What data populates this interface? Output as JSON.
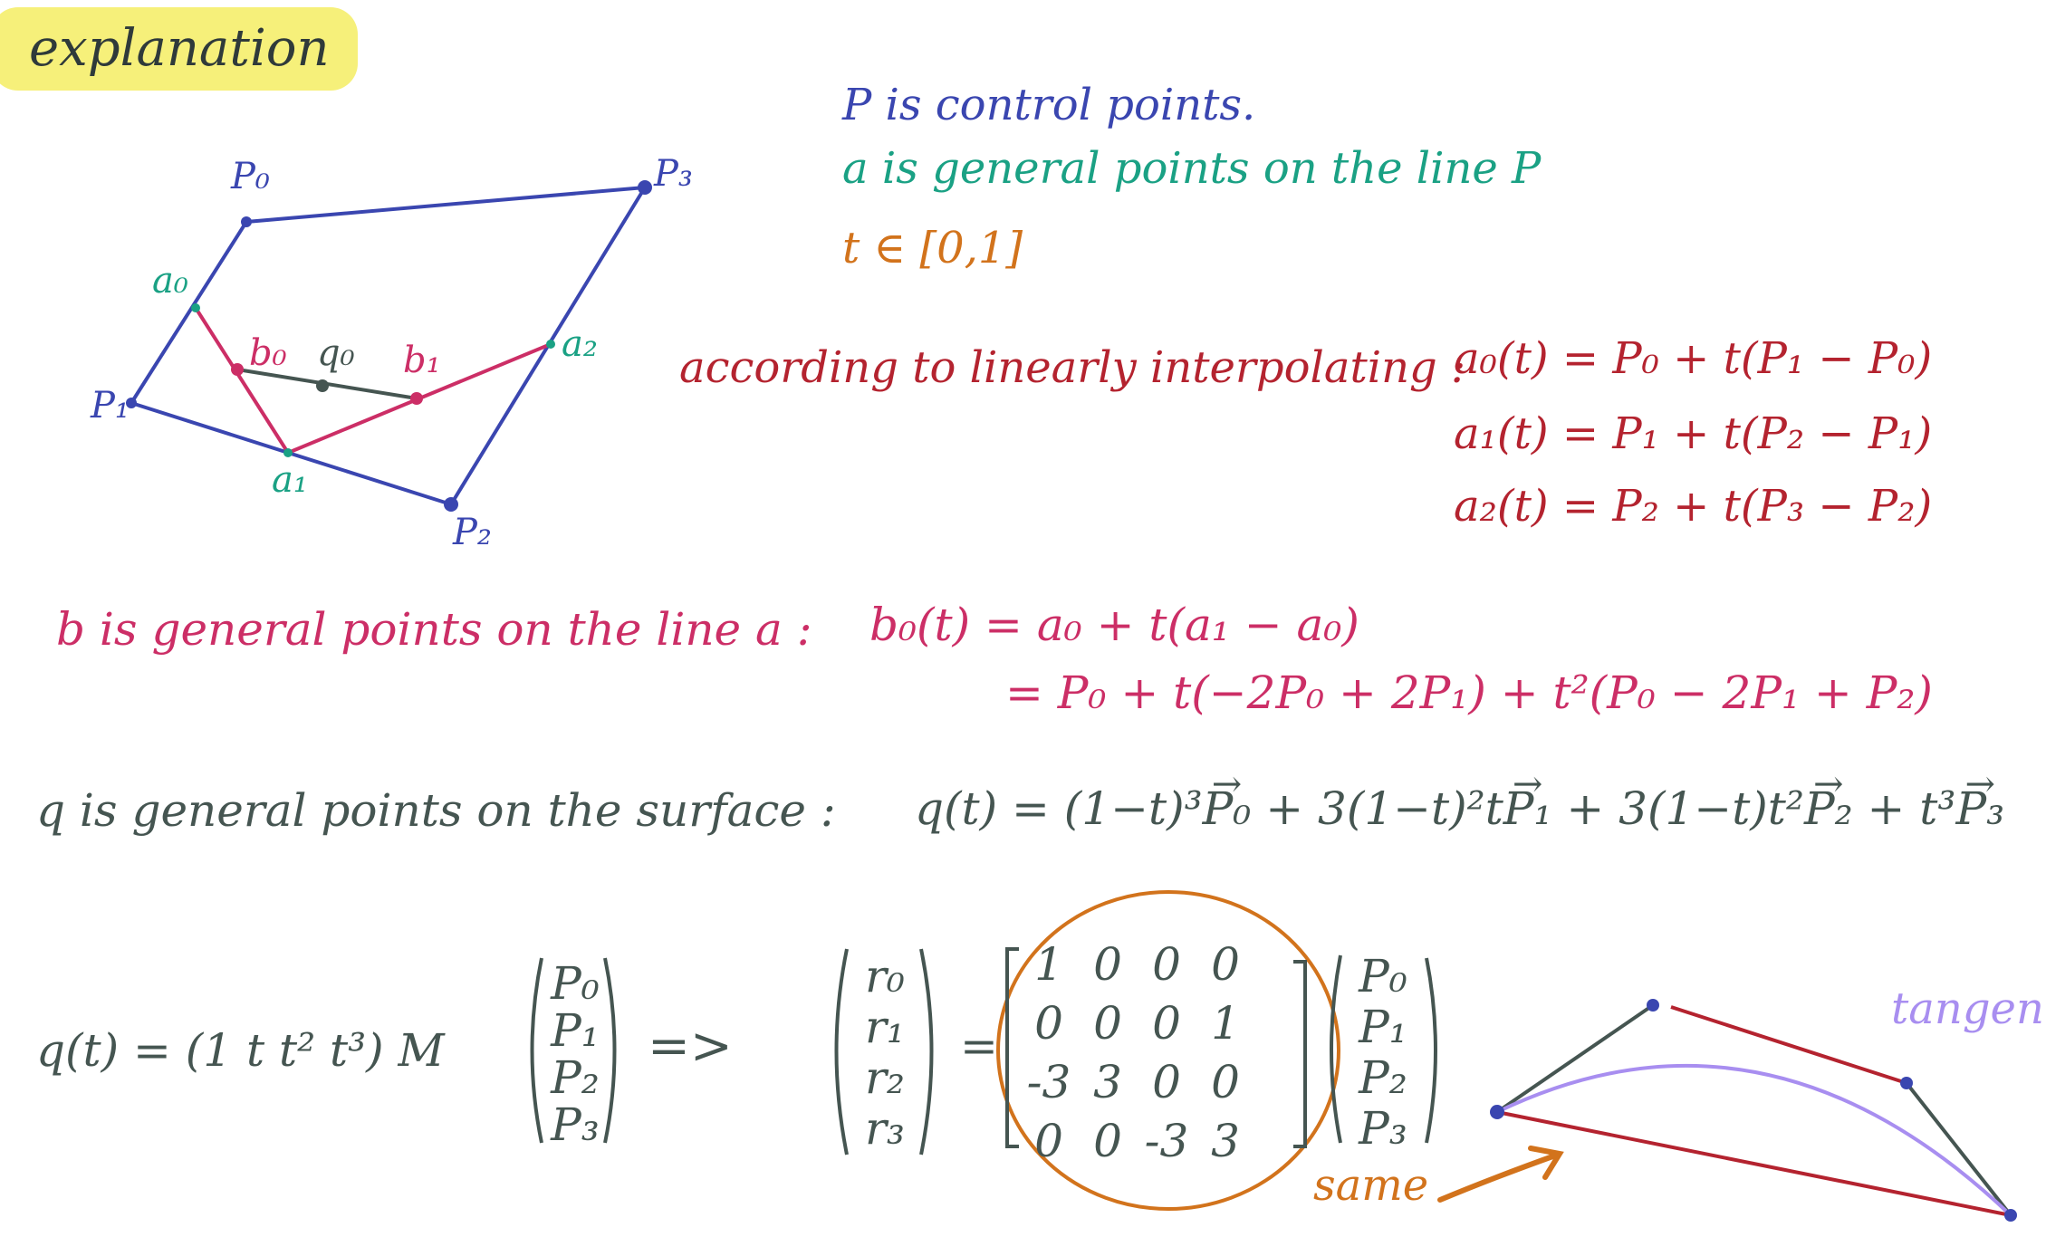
{
  "title": "explanation",
  "colors": {
    "blue": "#3a46b0",
    "teal": "#1aa184",
    "orange": "#d2731c",
    "red": "#b4232f",
    "pink": "#cc2e66",
    "gray": "#455551",
    "lavender": "#a88ef0",
    "highlight": "#f6f07a"
  },
  "diagram": {
    "labels": {
      "p0": "P₀",
      "p1": "P₁",
      "p2": "P₂",
      "p3": "P₃",
      "a0": "a₀",
      "a1": "a₁",
      "a2": "a₂",
      "b0": "b₀",
      "b1": "b₁",
      "q0": "q₀"
    }
  },
  "notes": {
    "p_def": "P is control points.",
    "a_def": "a is general points on the line P",
    "t_def": "t ∈ [0,1]",
    "interp_label": "according to linearly interpolating :",
    "eq_a0": "a₀(t) = P₀ + t(P₁ − P₀)",
    "eq_a1": "a₁(t) = P₁ + t(P₂ − P₁)",
    "eq_a2": "a₂(t) = P₂ + t(P₃ − P₂)",
    "b_def": "b is general points on the line a :",
    "eq_b0_1": "b₀(t) = a₀ + t(a₁ − a₀)",
    "eq_b0_2": "= P₀ + t(−2P₀ + 2P₁) + t²(P₀ − 2P₁ + P₂)",
    "q_def": "q is general points on the surface :",
    "eq_q": {
      "lhs": "q(t) = (1−t)³",
      "p0": "P₀",
      "t2": " + 3(1−t)²t",
      "p1": "P₁",
      "t3": " + 3(1−t)t²",
      "p2": "P₂",
      "t4": " + t³",
      "p3": "P₃"
    }
  },
  "matrix_eq": {
    "lhs": "q(t) = (1  t  t²  t³) M",
    "arrow": "=>",
    "equals": "=",
    "p_vector": [
      "P₀",
      "P₁",
      "P₂",
      "P₃"
    ],
    "r_vector": [
      "r₀",
      "r₁",
      "r₂",
      "r₃"
    ],
    "matrix": [
      [
        "1",
        "0",
        "0",
        "0"
      ],
      [
        "0",
        "0",
        "0",
        "1"
      ],
      [
        "-3",
        "3",
        "0",
        "0"
      ],
      [
        "0",
        "0",
        "-3",
        "3"
      ]
    ],
    "same_label": "same"
  },
  "tangent_label": "tangent"
}
